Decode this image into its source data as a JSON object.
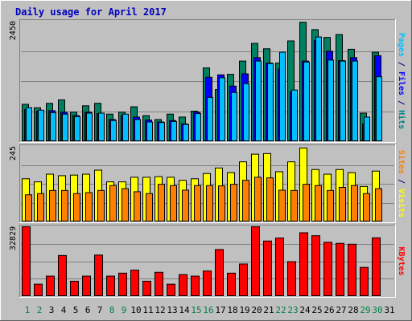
{
  "chart_data": {
    "type": "bar",
    "title": "Daily usage for April 2017",
    "categories": [
      "1",
      "2",
      "3",
      "4",
      "5",
      "6",
      "7",
      "8",
      "9",
      "10",
      "11",
      "12",
      "13",
      "14",
      "15",
      "16",
      "17",
      "18",
      "19",
      "20",
      "21",
      "22",
      "23",
      "24",
      "25",
      "26",
      "27",
      "28",
      "29",
      "30",
      "31"
    ],
    "weekend_days": [
      "1",
      "2",
      "8",
      "9",
      "15",
      "16",
      "22",
      "23",
      "29",
      "30"
    ],
    "panels": [
      {
        "id": "hits-files-pages",
        "ymax_label": "2450",
        "ylim": [
          0,
          2450
        ],
        "axis_label_parts": [
          {
            "text": "Pages",
            "color": "#00c0ff"
          },
          {
            "text": " / ",
            "color": "#000080"
          },
          {
            "text": "Files",
            "color": "#0000ff"
          },
          {
            "text": " / ",
            "color": "#000080"
          },
          {
            "text": "Hits",
            "color": "#008080"
          }
        ],
        "series": [
          {
            "name": "Hits",
            "color": "#008060",
            "values": [
              760,
              690,
              780,
              850,
              600,
              730,
              780,
              560,
              600,
              710,
              530,
              450,
              560,
              500,
              620,
              1500,
              1060,
              1370,
              1640,
              2000,
              1890,
              1600,
              2050,
              2430,
              2280,
              2120,
              2180,
              1880,
              580,
              1820
            ]
          },
          {
            "name": "Files",
            "color": "#0000ff",
            "values": [
              650,
              620,
              630,
              600,
              530,
              600,
              570,
              450,
              530,
              500,
              440,
              400,
              430,
              360,
              600,
              1310,
              1360,
              1130,
              1380,
              1710,
              1600,
              1480,
              1020,
              1640,
              2060,
              1840,
              1650,
              1710,
              360,
              1750
            ]
          },
          {
            "name": "Pages",
            "color": "#00c0ff",
            "values": [
              690,
              640,
              590,
              560,
              510,
              580,
              580,
              430,
              560,
              450,
              400,
              390,
              410,
              350,
              570,
              900,
              1300,
              1000,
              1180,
              1640,
              1590,
              1820,
              1050,
              1620,
              2130,
              1660,
              1640,
              1640,
              500,
              1320
            ]
          }
        ]
      },
      {
        "id": "visits-sites",
        "ymax_label": "245",
        "ylim": [
          0,
          245
        ],
        "axis_label_parts": [
          {
            "text": "Sites",
            "color": "#ff8000"
          },
          {
            "text": " / ",
            "color": "#000080"
          },
          {
            "text": "Visits",
            "color": "#ffff00"
          }
        ],
        "series": [
          {
            "name": "Visits",
            "color": "#ffff00",
            "values": [
              140,
              130,
              155,
              150,
              152,
              155,
              168,
              130,
              130,
              145,
              145,
              147,
              145,
              135,
              140,
              157,
              175,
              160,
              195,
              220,
              222,
              163,
              195,
              240,
              170,
              155,
              170,
              160,
              115,
              165
            ]
          },
          {
            "name": "Sites",
            "color": "#ff8000",
            "values": [
              88,
              92,
              102,
              102,
              92,
              95,
              102,
              118,
              108,
              98,
              92,
              122,
              118,
              103,
              118,
              118,
              117,
              122,
              135,
              145,
              143,
              103,
              102,
              122,
              118,
              102,
              112,
              118,
              92,
              108
            ]
          }
        ]
      },
      {
        "id": "kbytes",
        "ymax_label": "32829",
        "ylim": [
          0,
          32829
        ],
        "axis_label_parts": [
          {
            "text": "KBytes",
            "color": "#ff0000"
          }
        ],
        "series": [
          {
            "name": "KBytes",
            "color": "#ff0000",
            "values": [
              32800,
              5800,
              9600,
              19300,
              7200,
              9600,
              19500,
              9600,
              11000,
              12400,
              7200,
              11400,
              5800,
              10300,
              9600,
              12000,
              22100,
              11000,
              15300,
              32800,
              26100,
              27500,
              16400,
              30000,
              28600,
              25500,
              25000,
              24600,
              13700,
              27600
            ]
          }
        ]
      }
    ]
  }
}
